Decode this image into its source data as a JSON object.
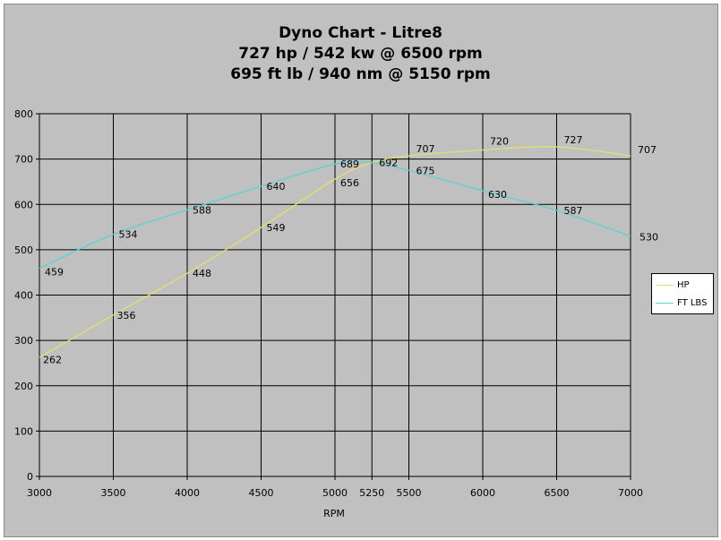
{
  "chart_data": {
    "type": "line",
    "title": "Dyno Chart - Litre8",
    "subtitle_lines": [
      "727 hp / 542 kw @ 6500 rpm",
      "695 ft lb / 940 nm @ 5150 rpm"
    ],
    "xlabel": "RPM",
    "ylabel": "",
    "xlim": [
      3000,
      7000
    ],
    "ylim": [
      0,
      800
    ],
    "x_ticks": [
      "3000",
      "3500",
      "4000",
      "4500",
      "5000",
      "5250",
      "5500",
      "6000",
      "6500",
      "7000"
    ],
    "y_ticks": [
      "0",
      "100",
      "200",
      "300",
      "400",
      "500",
      "600",
      "700",
      "800"
    ],
    "grid": true,
    "legend_position": "right",
    "categories": [
      3000,
      3500,
      4000,
      4500,
      5000,
      5250,
      5500,
      6000,
      6500,
      7000
    ],
    "series": [
      {
        "name": "HP",
        "color": "#e6e06a",
        "values": [
          262,
          356,
          448,
          549,
          656,
          692,
          707,
          720,
          727,
          707
        ],
        "labels": [
          "262",
          "356",
          "448",
          "549",
          "656",
          "692",
          "707",
          "720",
          "727",
          "707"
        ]
      },
      {
        "name": "FT LBS",
        "color": "#5bd2d2",
        "values": [
          459,
          534,
          588,
          640,
          689,
          692,
          675,
          630,
          587,
          530
        ],
        "labels": [
          "459",
          "534",
          "588",
          "640",
          "689",
          "",
          "675",
          "630",
          "587",
          "530"
        ]
      }
    ]
  }
}
